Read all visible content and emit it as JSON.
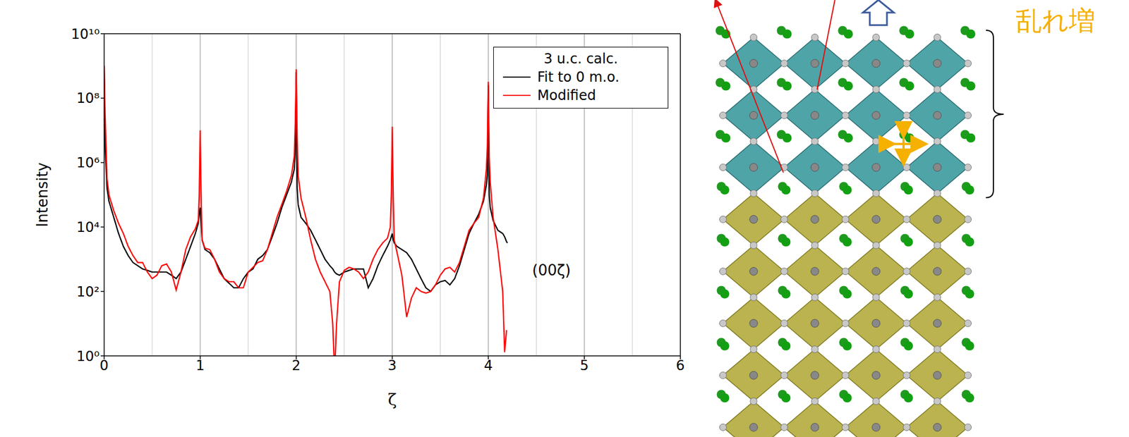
{
  "chart_data": {
    "type": "line",
    "xlabel": "ζ",
    "ylabel": "Intensity",
    "legend_title": "3 u.c. calc.",
    "annotations": [
      "(00ζ)"
    ],
    "log": "y",
    "grid": "x",
    "legend": "upper right",
    "xlim": [
      0,
      6
    ],
    "xticks": [
      0,
      1,
      2,
      3,
      4,
      5,
      6
    ],
    "ylim": [
      1,
      10000000000.0
    ],
    "yticks": [
      {
        "value": 1,
        "label": "10⁰"
      },
      {
        "value": 100,
        "label": "10²"
      },
      {
        "value": 10000,
        "label": "10⁴"
      },
      {
        "value": 1000000,
        "label": "10⁶"
      },
      {
        "value": 100000000,
        "label": "10⁸"
      },
      {
        "value": 10000000000,
        "label": "10¹⁰"
      }
    ],
    "x": [
      0,
      0.01,
      0.03,
      0.05,
      0.1,
      0.15,
      0.2,
      0.25,
      0.3,
      0.35,
      0.4,
      0.45,
      0.5,
      0.55,
      0.6,
      0.65,
      0.7,
      0.75,
      0.8,
      0.85,
      0.9,
      0.95,
      0.98,
      0.99,
      1,
      1.01,
      1.02,
      1.05,
      1.1,
      1.15,
      1.2,
      1.25,
      1.3,
      1.35,
      1.4,
      1.45,
      1.5,
      1.55,
      1.6,
      1.65,
      1.7,
      1.75,
      1.8,
      1.85,
      1.9,
      1.95,
      1.98,
      1.99,
      2,
      2.01,
      2.02,
      2.05,
      2.1,
      2.15,
      2.2,
      2.25,
      2.3,
      2.35,
      2.38,
      2.4,
      2.42,
      2.45,
      2.5,
      2.55,
      2.6,
      2.65,
      2.7,
      2.75,
      2.8,
      2.85,
      2.9,
      2.95,
      2.98,
      2.99,
      3,
      3.01,
      3.02,
      3.05,
      3.1,
      3.15,
      3.2,
      3.25,
      3.3,
      3.35,
      3.4,
      3.45,
      3.5,
      3.55,
      3.6,
      3.65,
      3.7,
      3.75,
      3.8,
      3.85,
      3.9,
      3.95,
      3.98,
      3.99,
      4,
      4.01,
      4.02,
      4.05,
      4.1,
      4.15,
      4.17,
      4.19,
      4.2
    ],
    "series": [
      {
        "name": "Fit to 0 m.o.",
        "color": "#000000",
        "values": [
          1000000000.0,
          3200000.0,
          160000.0,
          63000.0,
          20000.0,
          6300,
          2500,
          1300,
          790,
          630,
          500,
          450,
          400,
          400,
          400,
          400,
          320,
          250,
          400,
          1000,
          2500,
          6300,
          13000.0,
          25000.0,
          40000.0,
          13000.0,
          4000,
          2000,
          1600,
          1000,
          500,
          250,
          180,
          130,
          130,
          250,
          400,
          500,
          1000,
          1300,
          2000,
          5000,
          13000.0,
          40000.0,
          100000.0,
          250000.0,
          630000.0,
          2000000.0,
          630000000.0,
          160000.0,
          50000.0,
          20000.0,
          13000.0,
          7900,
          4000,
          2000,
          1000,
          630,
          500,
          400,
          350,
          320,
          400,
          450,
          500,
          500,
          500,
          130,
          250,
          630,
          1300,
          2500,
          4000,
          5000,
          6300,
          4000,
          3200,
          2500,
          2000,
          1600,
          1000,
          500,
          250,
          130,
          100,
          160,
          200,
          220,
          160,
          250,
          630,
          2000,
          6300,
          13000.0,
          25000.0,
          63000.0,
          200000.0,
          400000.0,
          250000000.0,
          100000.0,
          40000.0,
          16000.0,
          7900,
          6300,
          5000,
          3500,
          3200
        ]
      },
      {
        "name": "Modified",
        "color": "#ff0000",
        "values": [
          1000000000.0,
          32000000.0,
          320000.0,
          100000.0,
          32000.0,
          13000.0,
          6300,
          2500,
          1300,
          790,
          790,
          400,
          250,
          320,
          630,
          710,
          400,
          110,
          400,
          2000,
          5000,
          8900,
          16000.0,
          100000.0,
          10000000.0,
          100000.0,
          4000,
          2200,
          2000,
          1000,
          400,
          250,
          200,
          200,
          130,
          130,
          400,
          560,
          790,
          890,
          2000,
          6300,
          20000.0,
          50000.0,
          130000.0,
          400000.0,
          1600000.0,
          16000000.0,
          790000000.0,
          6300000.0,
          400000.0,
          79000.0,
          20000.0,
          4000,
          1000,
          400,
          200,
          100,
          10,
          0.3,
          10,
          200,
          450,
          560,
          500,
          400,
          250,
          400,
          1000,
          2000,
          3200,
          4500,
          10000.0,
          100000.0,
          13000000.0,
          100000.0,
          4000,
          1600,
          320,
          16,
          63,
          130,
          100,
          89,
          100,
          160,
          320,
          500,
          560,
          400,
          790,
          2500,
          7900,
          13000.0,
          20000.0,
          79000.0,
          630000.0,
          3200000.0,
          320000000.0,
          1600000.0,
          250000.0,
          20000.0,
          2000,
          100,
          1.3,
          6.3,
          null
        ]
      }
    ]
  },
  "diagram": {
    "label": "乱れ増"
  }
}
